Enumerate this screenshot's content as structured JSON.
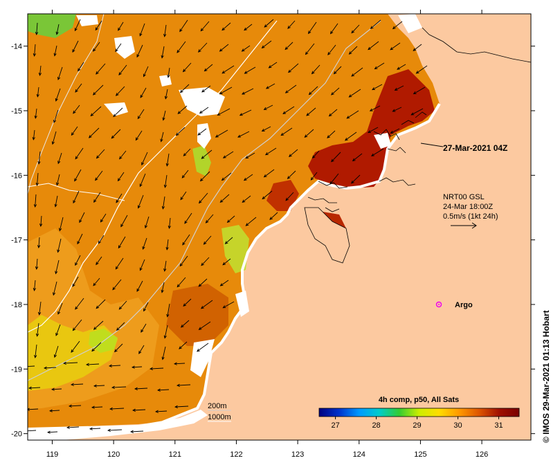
{
  "map": {
    "x_ticks": [
      "119",
      "120",
      "121",
      "122",
      "123",
      "124",
      "125",
      "126"
    ],
    "y_ticks": [
      "-14",
      "-15",
      "-16",
      "-17",
      "-18",
      "-19",
      "-20"
    ],
    "x_range": [
      118.6,
      126.8
    ],
    "y_range": [
      -20.1,
      -13.5
    ],
    "timestamp": "27-Mar-2021 04Z",
    "current_legend": {
      "line1": "NRT00 GSL",
      "line2": "24-Mar 18:00Z",
      "line3": "0.5m/s (1kt 24h)"
    },
    "argo_label": "Argo",
    "argo_position": {
      "lon": 125.3,
      "lat": -18.0
    },
    "isobath_labels": [
      "200m",
      "1000m"
    ],
    "credit": "IMOS 29-Mar-2021 01:13 Hobart",
    "copyright_symbol": "©",
    "colorbar": {
      "title": "4h comp, p50, All Sats",
      "ticks": [
        "27",
        "28",
        "29",
        "30",
        "31"
      ],
      "range": [
        26.6,
        31.5
      ],
      "colors": [
        "#000080",
        "#0033cc",
        "#0099ff",
        "#00cccc",
        "#33cc33",
        "#ccee00",
        "#ffdd00",
        "#ff9900",
        "#dd5500",
        "#a01000",
        "#7a0000"
      ]
    },
    "colors": {
      "land": "#fcc9a0",
      "cloud": "#ffffff",
      "sst_warm": "#e07a00",
      "sst_hot": "#a01000",
      "sst_cool": "#d8e020",
      "argo": "#ee00ee"
    }
  }
}
